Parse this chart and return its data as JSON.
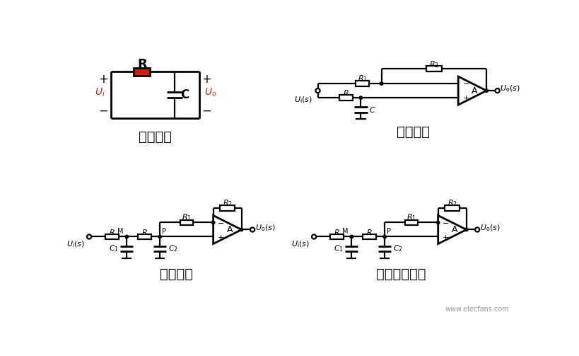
{
  "bg_color": "#ffffff",
  "line_color": "#000000",
  "red_color": "#cc2200",
  "title1": "无源低通",
  "title2": "一阶低通",
  "title3": "二阶低通",
  "title4": "实用二阶低通",
  "watermark": "www.elecfans.com"
}
